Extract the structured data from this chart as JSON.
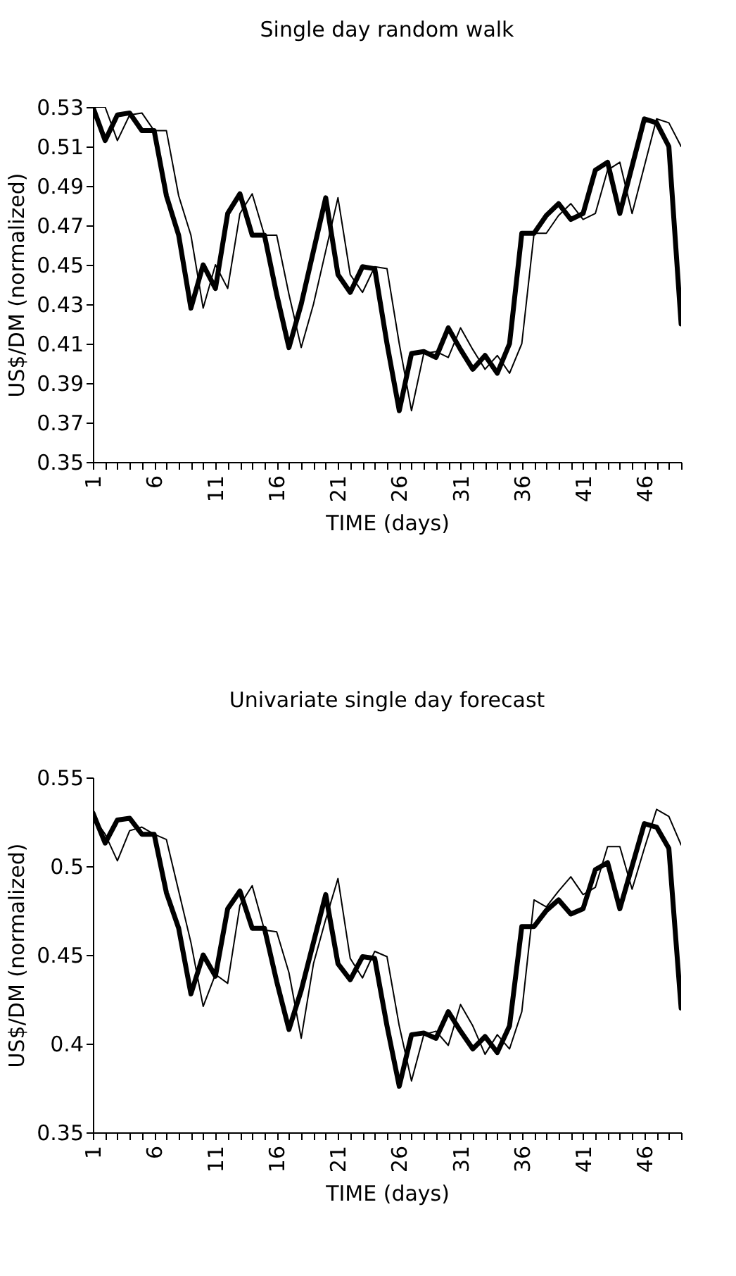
{
  "chart_data": [
    {
      "type": "line",
      "title": "Single day random walk",
      "xlabel": "TIME (days)",
      "ylabel": "US$/DM (normalized)",
      "x": [
        1,
        2,
        3,
        4,
        5,
        6,
        7,
        8,
        9,
        10,
        11,
        12,
        13,
        14,
        15,
        16,
        17,
        18,
        19,
        20,
        21,
        22,
        23,
        24,
        25,
        26,
        27,
        28,
        29,
        30,
        31,
        32,
        33,
        34,
        35,
        36,
        37,
        38,
        39,
        40,
        41,
        42,
        43,
        44,
        45,
        46,
        47,
        48,
        49
      ],
      "series": [
        {
          "color": "#000000",
          "values": [
            0.53,
            0.513,
            0.526,
            0.527,
            0.518,
            0.518,
            0.485,
            0.465,
            0.428,
            0.45,
            0.438,
            0.476,
            0.486,
            0.465,
            0.465,
            0.435,
            0.408,
            0.43,
            0.457,
            0.484,
            0.445,
            0.436,
            0.449,
            0.448,
            0.41,
            0.376,
            0.405,
            0.406,
            0.403,
            0.418,
            0.407,
            0.397,
            0.404,
            0.395,
            0.41,
            0.466,
            0.466,
            0.475,
            0.481,
            0.473,
            0.476,
            0.498,
            0.502,
            0.476,
            0.5,
            0.524,
            0.522,
            0.51,
            0.42
          ]
        },
        {
          "color": "#000000",
          "values": [
            0.53,
            0.53,
            0.513,
            0.526,
            0.527,
            0.518,
            0.518,
            0.485,
            0.465,
            0.428,
            0.45,
            0.438,
            0.476,
            0.486,
            0.465,
            0.465,
            0.435,
            0.408,
            0.43,
            0.457,
            0.484,
            0.445,
            0.436,
            0.449,
            0.448,
            0.41,
            0.376,
            0.405,
            0.406,
            0.403,
            0.418,
            0.407,
            0.397,
            0.404,
            0.395,
            0.41,
            0.466,
            0.466,
            0.475,
            0.481,
            0.473,
            0.476,
            0.498,
            0.502,
            0.476,
            0.5,
            0.524,
            0.522,
            0.51
          ]
        }
      ],
      "xlim": [
        1,
        49
      ],
      "xticks": [
        1,
        {
          "value": 2,
          "label": null
        },
        {
          "value": 3,
          "label": null
        },
        {
          "value": 4,
          "label": null
        },
        {
          "value": 5,
          "label": null
        },
        6,
        {
          "value": 7,
          "label": null
        },
        {
          "value": 8,
          "label": null
        },
        {
          "value": 9,
          "label": null
        },
        {
          "value": 10,
          "label": null
        },
        11,
        {
          "value": 12,
          "label": null
        },
        {
          "value": 13,
          "label": null
        },
        {
          "value": 14,
          "label": null
        },
        {
          "value": 15,
          "label": null
        },
        16,
        {
          "value": 17,
          "label": null
        },
        {
          "value": 18,
          "label": null
        },
        {
          "value": 19,
          "label": null
        },
        {
          "value": 20,
          "label": null
        },
        21,
        {
          "value": 22,
          "label": null
        },
        {
          "value": 23,
          "label": null
        },
        {
          "value": 24,
          "label": null
        },
        {
          "value": 25,
          "label": null
        },
        26,
        {
          "value": 27,
          "label": null
        },
        {
          "value": 28,
          "label": null
        },
        {
          "value": 29,
          "label": null
        },
        {
          "value": 30,
          "label": null
        },
        31,
        {
          "value": 32,
          "label": null
        },
        {
          "value": 33,
          "label": null
        },
        {
          "value": 34,
          "label": null
        },
        {
          "value": 35,
          "label": null
        },
        36,
        {
          "value": 37,
          "label": null
        },
        {
          "value": 38,
          "label": null
        },
        {
          "value": 39,
          "label": null
        },
        {
          "value": 40,
          "label": null
        },
        41,
        {
          "value": 42,
          "label": null
        },
        {
          "value": 43,
          "label": null
        },
        {
          "value": 44,
          "label": null
        },
        {
          "value": 45,
          "label": null
        },
        46,
        {
          "value": 47,
          "label": null
        },
        {
          "value": 48,
          "label": null
        },
        {
          "value": 49,
          "label": null
        }
      ],
      "ylim": [
        0.35,
        0.53
      ],
      "yticks": [
        0.35,
        0.37,
        0.39,
        0.41,
        0.43,
        0.45,
        0.47,
        0.49,
        0.51,
        0.53
      ],
      "grid": false,
      "legend": false
    },
    {
      "type": "line",
      "title": "Univariate single day forecast",
      "xlabel": "TIME (days)",
      "ylabel": "US$/DM (normalized)",
      "x": [
        1,
        2,
        3,
        4,
        5,
        6,
        7,
        8,
        9,
        10,
        11,
        12,
        13,
        14,
        15,
        16,
        17,
        18,
        19,
        20,
        21,
        22,
        23,
        24,
        25,
        26,
        27,
        28,
        29,
        30,
        31,
        32,
        33,
        34,
        35,
        36,
        37,
        38,
        39,
        40,
        41,
        42,
        43,
        44,
        45,
        46,
        47,
        48,
        49
      ],
      "series": [
        {
          "color": "#000000",
          "values": [
            0.53,
            0.513,
            0.526,
            0.527,
            0.518,
            0.518,
            0.485,
            0.465,
            0.428,
            0.45,
            0.438,
            0.476,
            0.486,
            0.465,
            0.465,
            0.435,
            0.408,
            0.43,
            0.457,
            0.484,
            0.445,
            0.436,
            0.449,
            0.448,
            0.41,
            0.376,
            0.405,
            0.406,
            0.403,
            0.418,
            0.407,
            0.397,
            0.404,
            0.395,
            0.41,
            0.466,
            0.466,
            0.475,
            0.481,
            0.473,
            0.476,
            0.498,
            0.502,
            0.476,
            0.5,
            0.524,
            0.522,
            0.51,
            0.42
          ]
        },
        {
          "color": "#000000",
          "values": [
            0.528,
            0.518,
            0.503,
            0.52,
            0.522,
            0.518,
            0.515,
            0.486,
            0.457,
            0.421,
            0.439,
            0.434,
            0.478,
            0.489,
            0.464,
            0.463,
            0.44,
            0.403,
            0.445,
            0.47,
            0.493,
            0.448,
            0.437,
            0.452,
            0.449,
            0.41,
            0.379,
            0.405,
            0.407,
            0.399,
            0.422,
            0.41,
            0.394,
            0.405,
            0.397,
            0.418,
            0.481,
            0.477,
            0.486,
            0.494,
            0.484,
            0.488,
            0.511,
            0.511,
            0.487,
            0.51,
            0.532,
            0.528,
            0.512
          ]
        }
      ],
      "xlim": [
        1,
        49
      ],
      "xticks": [
        1,
        {
          "value": 2,
          "label": null
        },
        {
          "value": 3,
          "label": null
        },
        {
          "value": 4,
          "label": null
        },
        {
          "value": 5,
          "label": null
        },
        6,
        {
          "value": 7,
          "label": null
        },
        {
          "value": 8,
          "label": null
        },
        {
          "value": 9,
          "label": null
        },
        {
          "value": 10,
          "label": null
        },
        11,
        {
          "value": 12,
          "label": null
        },
        {
          "value": 13,
          "label": null
        },
        {
          "value": 14,
          "label": null
        },
        {
          "value": 15,
          "label": null
        },
        16,
        {
          "value": 17,
          "label": null
        },
        {
          "value": 18,
          "label": null
        },
        {
          "value": 19,
          "label": null
        },
        {
          "value": 20,
          "label": null
        },
        21,
        {
          "value": 22,
          "label": null
        },
        {
          "value": 23,
          "label": null
        },
        {
          "value": 24,
          "label": null
        },
        {
          "value": 25,
          "label": null
        },
        26,
        {
          "value": 27,
          "label": null
        },
        {
          "value": 28,
          "label": null
        },
        {
          "value": 29,
          "label": null
        },
        {
          "value": 30,
          "label": null
        },
        31,
        {
          "value": 32,
          "label": null
        },
        {
          "value": 33,
          "label": null
        },
        {
          "value": 34,
          "label": null
        },
        {
          "value": 35,
          "label": null
        },
        36,
        {
          "value": 37,
          "label": null
        },
        {
          "value": 38,
          "label": null
        },
        {
          "value": 39,
          "label": null
        },
        {
          "value": 40,
          "label": null
        },
        41,
        {
          "value": 42,
          "label": null
        },
        {
          "value": 43,
          "label": null
        },
        {
          "value": 44,
          "label": null
        },
        {
          "value": 45,
          "label": null
        },
        46,
        {
          "value": 47,
          "label": null
        },
        {
          "value": 48,
          "label": null
        },
        {
          "value": 49,
          "label": null
        }
      ],
      "ylim": [
        0.35,
        0.55
      ],
      "yticks": [
        0.35,
        0.4,
        0.45,
        0.5,
        0.55
      ],
      "grid": false,
      "legend": false
    }
  ]
}
